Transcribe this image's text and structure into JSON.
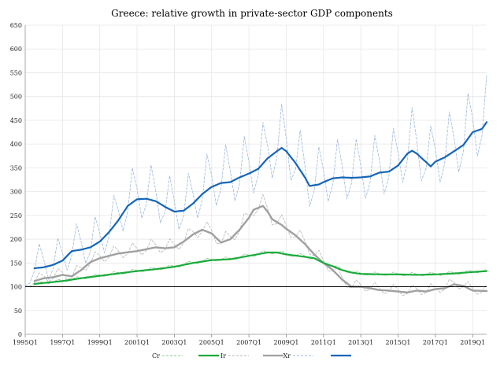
{
  "chart_data": {
    "type": "line",
    "title": "Greece: relative growth in private-sector GDP components",
    "xlabel": "",
    "ylabel": "",
    "ylim": [
      0,
      650
    ],
    "yticks": [
      0,
      50,
      100,
      150,
      200,
      250,
      300,
      350,
      400,
      450,
      500,
      550,
      600,
      650
    ],
    "x_tick_labels": [
      "1995Q1",
      "1997Q1",
      "1999Q1",
      "2001Q1",
      "2003Q1",
      "2005Q1",
      "2007Q1",
      "2009Q1",
      "2011Q1",
      "2013Q1",
      "2015Q1",
      "2017Q1",
      "2019Q1"
    ],
    "x_start_year": 1995,
    "x_end_year": 2019.75,
    "reference_line": 100,
    "legend": [
      "Cr",
      "",
      "Ir",
      "",
      "Xr",
      ""
    ],
    "colors": {
      "cr_raw": "#8cc98c",
      "cr_smooth": "#1aab3c",
      "ir_raw": "#b4b4b4",
      "ir_smooth": "#a0a0a0",
      "xr_raw": "#9db8dc",
      "xr_smooth": "#1565b8",
      "reference": "#000000"
    },
    "series": [
      {
        "name": "Cr",
        "style": "raw",
        "anchors": [
          [
            1995.0,
            100
          ],
          [
            1995.5,
            104
          ],
          [
            1996.0,
            108
          ],
          [
            1997.0,
            112
          ],
          [
            1998.0,
            118
          ],
          [
            1999.0,
            123
          ],
          [
            2000.0,
            128
          ],
          [
            2001.0,
            133
          ],
          [
            2002.0,
            137
          ],
          [
            2003.0,
            142
          ],
          [
            2004.0,
            150
          ],
          [
            2005.0,
            156
          ],
          [
            2006.0,
            158
          ],
          [
            2007.0,
            165
          ],
          [
            2008.0,
            172
          ],
          [
            2008.5,
            172
          ],
          [
            2009.0,
            168
          ],
          [
            2010.0,
            163
          ],
          [
            2010.5,
            160
          ],
          [
            2011.0,
            150
          ],
          [
            2011.5,
            143
          ],
          [
            2012.0,
            135
          ],
          [
            2012.5,
            130
          ],
          [
            2013.0,
            127
          ],
          [
            2014.0,
            126
          ],
          [
            2015.0,
            126
          ],
          [
            2016.0,
            125
          ],
          [
            2017.0,
            126
          ],
          [
            2018.0,
            128
          ],
          [
            2019.0,
            131
          ],
          [
            2019.75,
            133
          ]
        ],
        "seasonal_amp": 6
      },
      {
        "name": "Cr-smooth",
        "style": "smooth",
        "anchors": [
          [
            1995.5,
            106
          ],
          [
            1996.0,
            108
          ],
          [
            1997.0,
            112
          ],
          [
            1998.0,
            118
          ],
          [
            1999.0,
            123
          ],
          [
            2000.0,
            128
          ],
          [
            2001.0,
            133
          ],
          [
            2002.0,
            137
          ],
          [
            2003.0,
            142
          ],
          [
            2004.0,
            150
          ],
          [
            2005.0,
            156
          ],
          [
            2006.0,
            158
          ],
          [
            2007.0,
            165
          ],
          [
            2008.0,
            172
          ],
          [
            2008.5,
            172
          ],
          [
            2009.0,
            168
          ],
          [
            2010.0,
            163
          ],
          [
            2010.5,
            160
          ],
          [
            2011.0,
            150
          ],
          [
            2011.5,
            143
          ],
          [
            2012.0,
            135
          ],
          [
            2012.5,
            130
          ],
          [
            2013.0,
            127
          ],
          [
            2014.0,
            126
          ],
          [
            2015.0,
            126
          ],
          [
            2016.0,
            125
          ],
          [
            2017.0,
            126
          ],
          [
            2018.0,
            128
          ],
          [
            2019.0,
            131
          ],
          [
            2019.75,
            133
          ]
        ]
      },
      {
        "name": "Ir",
        "style": "raw",
        "anchors": [
          [
            1995.0,
            100
          ],
          [
            1995.5,
            110
          ],
          [
            1996.0,
            118
          ],
          [
            1996.5,
            120
          ],
          [
            1997.0,
            125
          ],
          [
            1997.5,
            122
          ],
          [
            1998.0,
            135
          ],
          [
            1998.5,
            152
          ],
          [
            1999.0,
            160
          ],
          [
            2000.0,
            170
          ],
          [
            2001.0,
            175
          ],
          [
            2002.0,
            183
          ],
          [
            2002.5,
            181
          ],
          [
            2003.0,
            183
          ],
          [
            2003.5,
            195
          ],
          [
            2004.0,
            210
          ],
          [
            2004.5,
            220
          ],
          [
            2005.0,
            212
          ],
          [
            2005.5,
            193
          ],
          [
            2006.0,
            200
          ],
          [
            2006.5,
            220
          ],
          [
            2007.0,
            245
          ],
          [
            2007.25,
            262
          ],
          [
            2007.75,
            270
          ],
          [
            2008.0,
            258
          ],
          [
            2008.25,
            242
          ],
          [
            2008.75,
            230
          ],
          [
            2009.0,
            222
          ],
          [
            2009.5,
            208
          ],
          [
            2010.0,
            190
          ],
          [
            2010.5,
            168
          ],
          [
            2011.0,
            150
          ],
          [
            2011.5,
            135
          ],
          [
            2012.0,
            115
          ],
          [
            2012.5,
            100
          ],
          [
            2013.0,
            100
          ],
          [
            2013.5,
            97
          ],
          [
            2014.0,
            93
          ],
          [
            2014.5,
            92
          ],
          [
            2015.0,
            90
          ],
          [
            2015.5,
            88
          ],
          [
            2016.0,
            92
          ],
          [
            2016.5,
            90
          ],
          [
            2017.0,
            95
          ],
          [
            2017.5,
            97
          ],
          [
            2018.0,
            105
          ],
          [
            2018.5,
            102
          ],
          [
            2019.0,
            92
          ],
          [
            2019.75,
            91
          ]
        ],
        "seasonal_amp": 20
      },
      {
        "name": "Ir-smooth",
        "style": "smooth",
        "anchors": [
          [
            1995.5,
            112
          ],
          [
            1996.0,
            118
          ],
          [
            1996.5,
            120
          ],
          [
            1997.0,
            125
          ],
          [
            1997.5,
            122
          ],
          [
            1998.0,
            135
          ],
          [
            1998.5,
            152
          ],
          [
            1999.0,
            160
          ],
          [
            2000.0,
            170
          ],
          [
            2001.0,
            175
          ],
          [
            2002.0,
            183
          ],
          [
            2002.5,
            181
          ],
          [
            2003.0,
            183
          ],
          [
            2003.5,
            195
          ],
          [
            2004.0,
            210
          ],
          [
            2004.5,
            220
          ],
          [
            2005.0,
            212
          ],
          [
            2005.5,
            193
          ],
          [
            2006.0,
            200
          ],
          [
            2006.5,
            220
          ],
          [
            2007.0,
            245
          ],
          [
            2007.25,
            262
          ],
          [
            2007.75,
            270
          ],
          [
            2008.0,
            258
          ],
          [
            2008.25,
            242
          ],
          [
            2008.75,
            230
          ],
          [
            2009.0,
            222
          ],
          [
            2009.5,
            208
          ],
          [
            2010.0,
            190
          ],
          [
            2010.5,
            168
          ],
          [
            2011.0,
            150
          ],
          [
            2011.5,
            135
          ],
          [
            2012.0,
            115
          ],
          [
            2012.5,
            100
          ],
          [
            2013.0,
            100
          ],
          [
            2013.5,
            97
          ],
          [
            2014.0,
            93
          ],
          [
            2014.5,
            92
          ],
          [
            2015.0,
            90
          ],
          [
            2015.5,
            88
          ],
          [
            2016.0,
            92
          ],
          [
            2016.5,
            90
          ],
          [
            2017.0,
            95
          ],
          [
            2017.5,
            97
          ],
          [
            2018.0,
            105
          ],
          [
            2018.5,
            102
          ],
          [
            2019.0,
            92
          ],
          [
            2019.75,
            91
          ]
        ]
      },
      {
        "name": "Xr",
        "style": "raw",
        "anchors": [
          [
            1995.0,
            100
          ],
          [
            1995.5,
            140
          ],
          [
            1996.0,
            141
          ],
          [
            1996.5,
            146
          ],
          [
            1997.0,
            155
          ],
          [
            1997.5,
            175
          ],
          [
            1998.0,
            178
          ],
          [
            1998.5,
            183
          ],
          [
            1999.0,
            195
          ],
          [
            1999.5,
            215
          ],
          [
            2000.0,
            240
          ],
          [
            2000.5,
            270
          ],
          [
            2001.0,
            284
          ],
          [
            2001.5,
            285
          ],
          [
            2002.0,
            280
          ],
          [
            2002.5,
            268
          ],
          [
            2003.0,
            258
          ],
          [
            2003.5,
            260
          ],
          [
            2004.0,
            275
          ],
          [
            2004.5,
            295
          ],
          [
            2005.0,
            310
          ],
          [
            2005.5,
            318
          ],
          [
            2006.0,
            320
          ],
          [
            2006.5,
            330
          ],
          [
            2007.0,
            338
          ],
          [
            2007.5,
            348
          ],
          [
            2008.0,
            370
          ],
          [
            2008.5,
            385
          ],
          [
            2008.75,
            392
          ],
          [
            2009.0,
            385
          ],
          [
            2009.5,
            360
          ],
          [
            2010.0,
            330
          ],
          [
            2010.25,
            312
          ],
          [
            2010.75,
            315
          ],
          [
            2011.0,
            320
          ],
          [
            2011.5,
            328
          ],
          [
            2012.0,
            330
          ],
          [
            2012.5,
            329
          ],
          [
            2013.0,
            330
          ],
          [
            2013.5,
            332
          ],
          [
            2014.0,
            340
          ],
          [
            2014.5,
            342
          ],
          [
            2015.0,
            355
          ],
          [
            2015.5,
            380
          ],
          [
            2015.75,
            386
          ],
          [
            2016.0,
            380
          ],
          [
            2016.5,
            362
          ],
          [
            2016.75,
            353
          ],
          [
            2017.0,
            363
          ],
          [
            2017.5,
            372
          ],
          [
            2018.0,
            385
          ],
          [
            2018.5,
            398
          ],
          [
            2019.0,
            425
          ],
          [
            2019.5,
            432
          ],
          [
            2019.75,
            446
          ]
        ],
        "seasonal_amp": 60
      },
      {
        "name": "Xr-smooth",
        "style": "smooth",
        "anchors": [
          [
            1995.5,
            139
          ],
          [
            1996.0,
            141
          ],
          [
            1996.5,
            146
          ],
          [
            1997.0,
            155
          ],
          [
            1997.5,
            175
          ],
          [
            1998.0,
            178
          ],
          [
            1998.5,
            183
          ],
          [
            1999.0,
            195
          ],
          [
            1999.5,
            215
          ],
          [
            2000.0,
            240
          ],
          [
            2000.5,
            270
          ],
          [
            2001.0,
            284
          ],
          [
            2001.5,
            285
          ],
          [
            2002.0,
            280
          ],
          [
            2002.5,
            268
          ],
          [
            2003.0,
            258
          ],
          [
            2003.5,
            260
          ],
          [
            2004.0,
            275
          ],
          [
            2004.5,
            295
          ],
          [
            2005.0,
            310
          ],
          [
            2005.5,
            318
          ],
          [
            2006.0,
            320
          ],
          [
            2006.5,
            330
          ],
          [
            2007.0,
            338
          ],
          [
            2007.5,
            348
          ],
          [
            2008.0,
            370
          ],
          [
            2008.5,
            385
          ],
          [
            2008.75,
            392
          ],
          [
            2009.0,
            385
          ],
          [
            2009.5,
            360
          ],
          [
            2010.0,
            330
          ],
          [
            2010.25,
            312
          ],
          [
            2010.75,
            315
          ],
          [
            2011.0,
            320
          ],
          [
            2011.5,
            328
          ],
          [
            2012.0,
            330
          ],
          [
            2012.5,
            329
          ],
          [
            2013.0,
            330
          ],
          [
            2013.5,
            332
          ],
          [
            2014.0,
            340
          ],
          [
            2014.5,
            342
          ],
          [
            2015.0,
            355
          ],
          [
            2015.5,
            380
          ],
          [
            2015.75,
            386
          ],
          [
            2016.0,
            380
          ],
          [
            2016.5,
            362
          ],
          [
            2016.75,
            353
          ],
          [
            2017.0,
            363
          ],
          [
            2017.5,
            372
          ],
          [
            2018.0,
            385
          ],
          [
            2018.5,
            398
          ],
          [
            2019.0,
            425
          ],
          [
            2019.5,
            432
          ],
          [
            2019.75,
            446
          ]
        ]
      }
    ]
  }
}
